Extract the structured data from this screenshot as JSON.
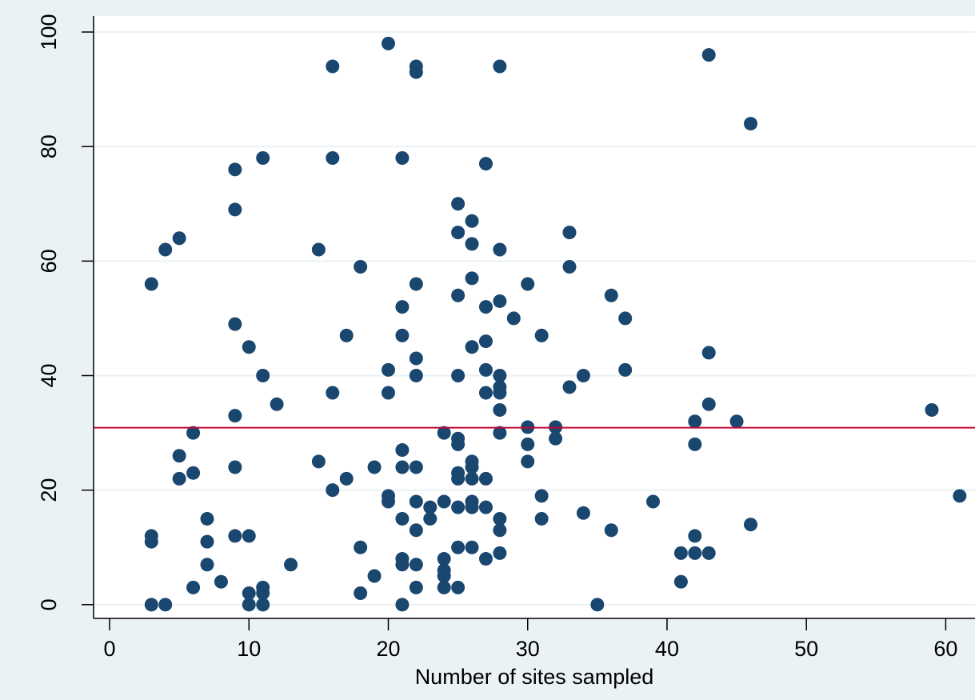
{
  "chart_data": {
    "type": "scatter",
    "x_label": "Number of sites sampled",
    "x": [
      3,
      4,
      3,
      3,
      3,
      4,
      5,
      5,
      5,
      6,
      6,
      6,
      7,
      7,
      7,
      8,
      9,
      9,
      9,
      9,
      9,
      9,
      10,
      10,
      10,
      10,
      11,
      11,
      11,
      11,
      11,
      12,
      13,
      15,
      15,
      16,
      16,
      16,
      16,
      17,
      17,
      18,
      18,
      18,
      19,
      19,
      20,
      20,
      20,
      20,
      20,
      21,
      21,
      21,
      21,
      21,
      21,
      21,
      21,
      21,
      22,
      22,
      22,
      22,
      22,
      22,
      22,
      22,
      22,
      22,
      23,
      23,
      24,
      24,
      24,
      24,
      24,
      24,
      25,
      25,
      25,
      25,
      25,
      25,
      25,
      25,
      25,
      25,
      25,
      26,
      26,
      26,
      26,
      26,
      26,
      26,
      26,
      26,
      26,
      27,
      27,
      27,
      27,
      27,
      27,
      27,
      27,
      28,
      28,
      28,
      28,
      28,
      28,
      28,
      28,
      28,
      28,
      28,
      29,
      30,
      30,
      30,
      30,
      31,
      31,
      31,
      32,
      32,
      33,
      33,
      33,
      34,
      34,
      35,
      36,
      36,
      37,
      37,
      39,
      41,
      41,
      42,
      42,
      42,
      42,
      43,
      43,
      43,
      43,
      45,
      46,
      46,
      59,
      61
    ],
    "values": [
      0,
      0,
      12,
      11,
      56,
      62,
      64,
      26,
      22,
      30,
      23,
      3,
      15,
      11,
      7,
      4,
      76,
      69,
      49,
      33,
      24,
      12,
      45,
      12,
      2,
      0,
      78,
      40,
      3,
      2,
      0,
      35,
      7,
      62,
      25,
      94,
      78,
      37,
      20,
      47,
      22,
      59,
      10,
      2,
      24,
      5,
      98,
      41,
      37,
      19,
      18,
      78,
      52,
      47,
      27,
      24,
      15,
      8,
      7,
      0,
      94,
      93,
      56,
      43,
      40,
      24,
      18,
      13,
      7,
      3,
      17,
      15,
      30,
      18,
      8,
      6,
      5,
      3,
      70,
      65,
      54,
      40,
      29,
      28,
      23,
      22,
      17,
      10,
      3,
      67,
      63,
      57,
      45,
      25,
      24,
      22,
      18,
      17,
      10,
      77,
      52,
      46,
      41,
      37,
      22,
      17,
      8,
      94,
      62,
      53,
      40,
      38,
      37,
      34,
      30,
      15,
      13,
      9,
      50,
      56,
      31,
      28,
      25,
      47,
      19,
      15,
      31,
      29,
      65,
      59,
      38,
      40,
      16,
      0,
      54,
      13,
      50,
      41,
      18,
      9,
      4,
      32,
      28,
      12,
      9,
      96,
      44,
      35,
      9,
      32,
      84,
      14,
      34,
      19
    ],
    "color": "#1a476f",
    "hline": {
      "value": 30.9,
      "color": "#c10534"
    },
    "xlim": [
      -1.15,
      62.1
    ],
    "ylim": [
      -2.4,
      102.8
    ],
    "xticks": [
      0,
      10,
      20,
      30,
      40,
      50,
      60
    ],
    "yticks": [
      0,
      20,
      40,
      60,
      80,
      100
    ],
    "grid": true
  }
}
